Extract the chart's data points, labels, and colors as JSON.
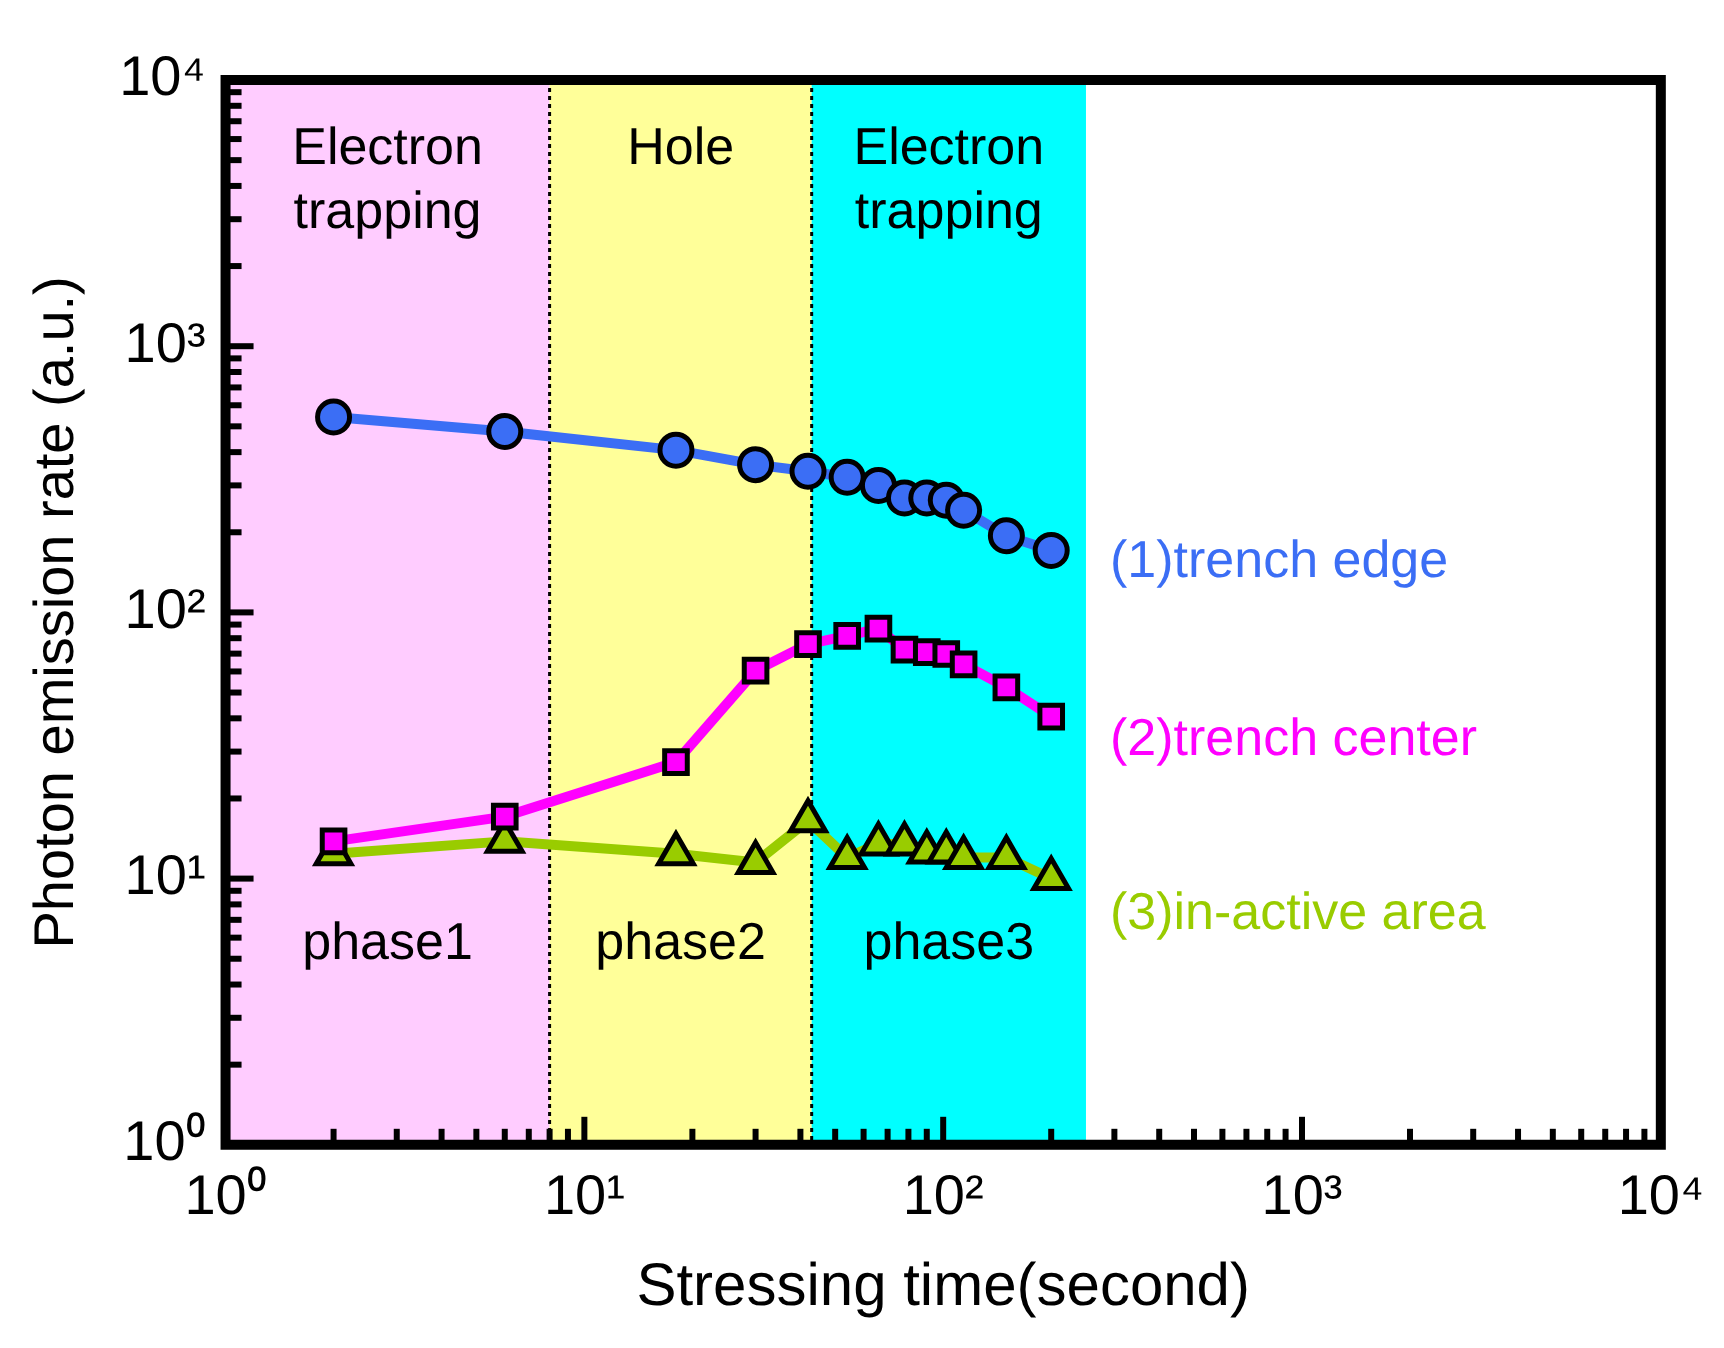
{
  "chart_data": {
    "type": "line",
    "xlabel": "Stressing time(second)",
    "ylabel": "Photon emission rate (a.u.)",
    "log": "xy",
    "grid": false,
    "legend": false,
    "x": [
      2,
      6,
      18,
      30,
      42,
      54,
      66,
      78,
      90,
      102,
      114,
      150,
      200
    ],
    "xlim": [
      1,
      10000
    ],
    "ylim": [
      1,
      10000
    ],
    "xticks": [
      {
        "value": 1,
        "label": "10⁰"
      },
      {
        "value": 2,
        "label": null
      },
      {
        "value": 3,
        "label": null
      },
      {
        "value": 4,
        "label": null
      },
      {
        "value": 5,
        "label": null
      },
      {
        "value": 6,
        "label": null
      },
      {
        "value": 7,
        "label": null
      },
      {
        "value": 8,
        "label": null
      },
      {
        "value": 9,
        "label": null
      },
      {
        "value": 10,
        "label": "10¹"
      },
      {
        "value": 20,
        "label": null
      },
      {
        "value": 30,
        "label": null
      },
      {
        "value": 40,
        "label": null
      },
      {
        "value": 50,
        "label": null
      },
      {
        "value": 60,
        "label": null
      },
      {
        "value": 70,
        "label": null
      },
      {
        "value": 80,
        "label": null
      },
      {
        "value": 90,
        "label": null
      },
      {
        "value": 100,
        "label": "10²"
      },
      {
        "value": 200,
        "label": null
      },
      {
        "value": 300,
        "label": null
      },
      {
        "value": 400,
        "label": null
      },
      {
        "value": 500,
        "label": null
      },
      {
        "value": 600,
        "label": null
      },
      {
        "value": 700,
        "label": null
      },
      {
        "value": 800,
        "label": null
      },
      {
        "value": 900,
        "label": null
      },
      {
        "value": 1000,
        "label": "10³"
      },
      {
        "value": 2000,
        "label": null
      },
      {
        "value": 3000,
        "label": null
      },
      {
        "value": 4000,
        "label": null
      },
      {
        "value": 5000,
        "label": null
      },
      {
        "value": 6000,
        "label": null
      },
      {
        "value": 7000,
        "label": null
      },
      {
        "value": 8000,
        "label": null
      },
      {
        "value": 9000,
        "label": null
      },
      {
        "value": 10000,
        "label": "10⁴"
      }
    ],
    "yticks": [
      {
        "value": 1,
        "label": "10⁰"
      },
      {
        "value": 2,
        "label": null
      },
      {
        "value": 3,
        "label": null
      },
      {
        "value": 4,
        "label": null
      },
      {
        "value": 5,
        "label": null
      },
      {
        "value": 6,
        "label": null
      },
      {
        "value": 7,
        "label": null
      },
      {
        "value": 8,
        "label": null
      },
      {
        "value": 9,
        "label": null
      },
      {
        "value": 10,
        "label": "10¹"
      },
      {
        "value": 20,
        "label": null
      },
      {
        "value": 30,
        "label": null
      },
      {
        "value": 40,
        "label": null
      },
      {
        "value": 50,
        "label": null
      },
      {
        "value": 60,
        "label": null
      },
      {
        "value": 70,
        "label": null
      },
      {
        "value": 80,
        "label": null
      },
      {
        "value": 90,
        "label": null
      },
      {
        "value": 100,
        "label": "10²"
      },
      {
        "value": 200,
        "label": null
      },
      {
        "value": 300,
        "label": null
      },
      {
        "value": 400,
        "label": null
      },
      {
        "value": 500,
        "label": null
      },
      {
        "value": 600,
        "label": null
      },
      {
        "value": 700,
        "label": null
      },
      {
        "value": 800,
        "label": null
      },
      {
        "value": 900,
        "label": null
      },
      {
        "value": 1000,
        "label": "10³"
      },
      {
        "value": 2000,
        "label": null
      },
      {
        "value": 3000,
        "label": null
      },
      {
        "value": 4000,
        "label": null
      },
      {
        "value": 5000,
        "label": null
      },
      {
        "value": 6000,
        "label": null
      },
      {
        "value": 7000,
        "label": null
      },
      {
        "value": 8000,
        "label": null
      },
      {
        "value": 9000,
        "label": null
      },
      {
        "value": 10000,
        "label": "10⁴"
      }
    ],
    "series": [
      {
        "name": "(1)trench edge",
        "color": "#3b6ef5",
        "marker": "circle",
        "values": [
          542,
          478,
          407,
          359,
          339,
          322,
          300,
          269,
          269,
          264,
          242,
          194,
          171
        ]
      },
      {
        "name": "(2)trench center",
        "color": "#ff00ff",
        "marker": "square",
        "values": [
          13.8,
          17.1,
          27.4,
          60.4,
          76,
          81.6,
          86.9,
          72.5,
          70.9,
          69.8,
          63.8,
          52.3,
          40.6
        ]
      },
      {
        "name": "(3)in-active area",
        "color": "#99cc00",
        "marker": "triangle",
        "values": [
          12.4,
          13.8,
          12.4,
          11.5,
          16.5,
          12,
          13.5,
          13.5,
          12.6,
          12.6,
          12,
          12,
          10
        ]
      }
    ],
    "bands": [
      {
        "axis": "x",
        "from": 1,
        "to": 8,
        "label": "Electron trapping",
        "color": "#ffccff"
      },
      {
        "axis": "x",
        "from": 8,
        "to": 43,
        "label": "Hole",
        "color": "#ffff99"
      },
      {
        "axis": "x",
        "from": 43,
        "to": 250,
        "label": "Electron trapping",
        "color": "#00ffff"
      }
    ],
    "ref_lines": [
      {
        "axis": "x",
        "value": 8,
        "line_style": "dotted",
        "color": "#000000"
      },
      {
        "axis": "x",
        "value": 43,
        "line_style": "dotted",
        "color": "#000000"
      }
    ],
    "annotations": [
      "phase1",
      "phase2",
      "phase3"
    ]
  }
}
